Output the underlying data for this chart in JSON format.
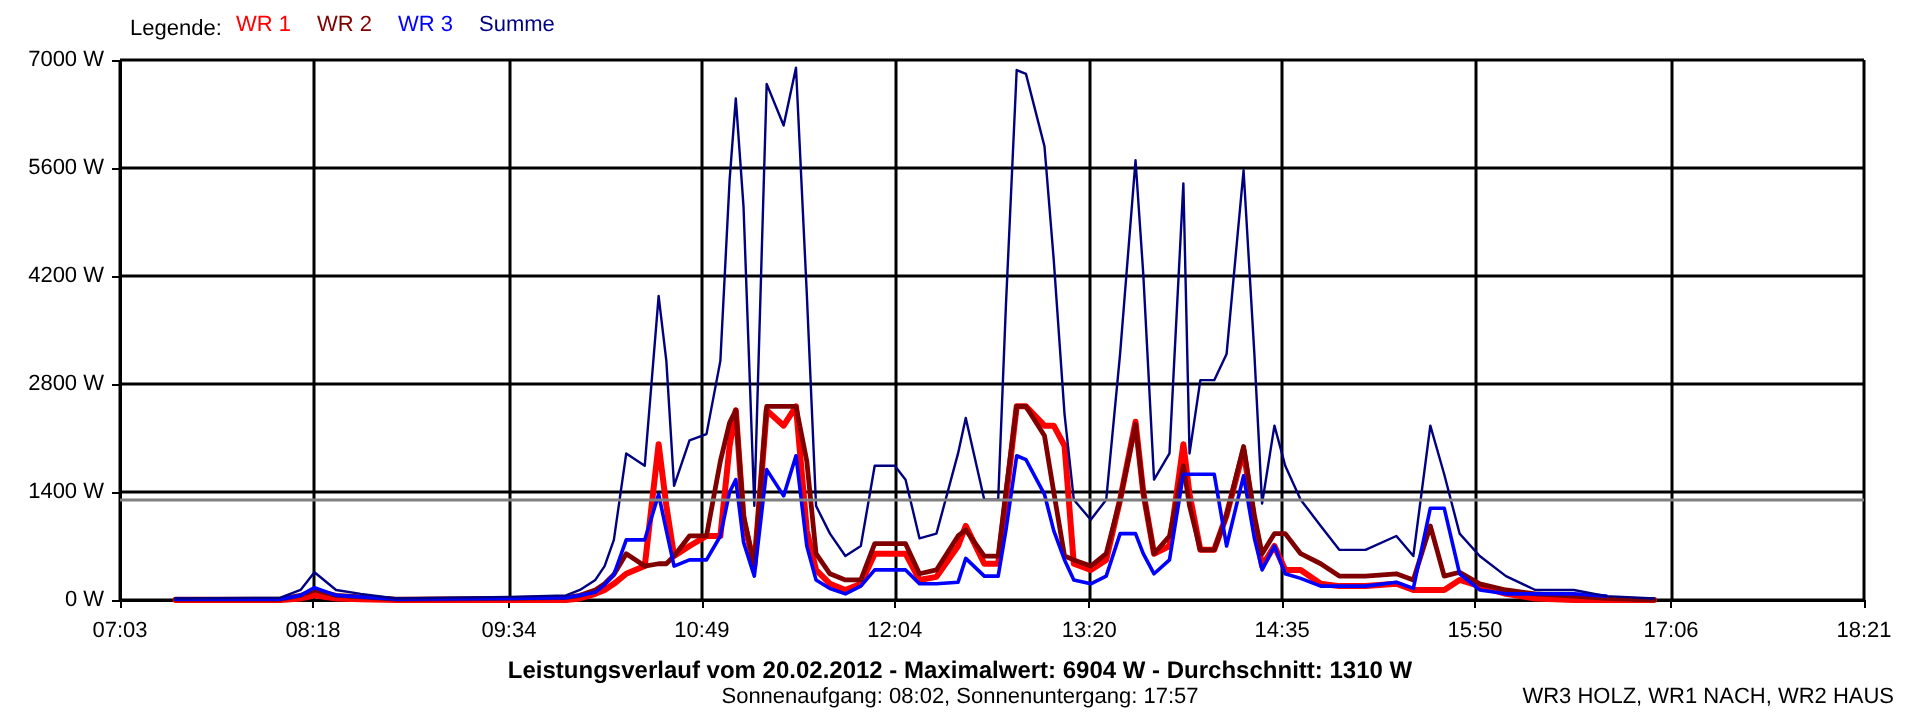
{
  "chart_data": {
    "type": "line",
    "title": "Leistungsverlauf vom 20.02.2012 - Maximalwert: 6904 W - Durchschnitt: 1310 W",
    "subtitle": "Sonnenaufgang: 08:02, Sonnenuntergang: 17:57",
    "legend_title": "Legende:",
    "annotations": [
      "WR3 HOLZ, WR1 NACH, WR2 HAUS"
    ],
    "x": [
      7.41,
      8.09,
      8.22,
      8.31,
      8.45,
      8.61,
      8.84,
      9.58,
      9.94,
      10.03,
      10.13,
      10.19,
      10.25,
      10.33,
      10.45,
      10.54,
      10.59,
      10.64,
      10.74,
      10.85,
      10.94,
      11.0,
      11.04,
      11.09,
      11.16,
      11.24,
      11.35,
      11.43,
      11.5,
      11.56,
      11.65,
      11.75,
      11.85,
      11.94,
      12.07,
      12.14,
      12.23,
      12.34,
      12.48,
      12.53,
      12.65,
      12.74,
      12.79,
      12.86,
      12.92,
      13.04,
      13.1,
      13.17,
      13.23,
      13.34,
      13.44,
      13.53,
      13.63,
      13.68,
      13.75,
      13.85,
      13.94,
      13.98,
      14.05,
      14.14,
      14.22,
      14.33,
      14.4,
      14.45,
      14.53,
      14.6,
      14.7,
      14.83,
      14.95,
      15.12,
      15.32,
      15.43,
      15.54,
      15.63,
      15.73,
      15.86,
      16.03,
      16.22,
      16.47,
      16.68,
      16.99
    ],
    "series": [
      {
        "name": "WR 1",
        "color": "#ff0000",
        "values": [
          0,
          0,
          20,
          60,
          20,
          10,
          0,
          0,
          0,
          20,
          80,
          130,
          210,
          340,
          440,
          2020,
          1220,
          570,
          700,
          830,
          830,
          2000,
          2460,
          1040,
          440,
          2460,
          2260,
          2510,
          900,
          390,
          210,
          130,
          210,
          600,
          600,
          600,
          260,
          300,
          700,
          960,
          470,
          470,
          1300,
          2510,
          2510,
          2260,
          2260,
          2000,
          470,
          390,
          520,
          1300,
          2310,
          1400,
          600,
          700,
          2020,
          1370,
          650,
          650,
          1100,
          1940,
          1000,
          440,
          700,
          390,
          390,
          210,
          180,
          180,
          210,
          130,
          130,
          130,
          260,
          180,
          80,
          20,
          0,
          0,
          0
        ]
      },
      {
        "name": "WR 2",
        "color": "#800000",
        "values": [
          10,
          10,
          60,
          130,
          60,
          40,
          10,
          20,
          30,
          60,
          130,
          210,
          330,
          600,
          440,
          470,
          470,
          570,
          830,
          830,
          1800,
          2300,
          2460,
          1100,
          440,
          2510,
          2510,
          2510,
          1800,
          600,
          340,
          260,
          260,
          730,
          730,
          730,
          340,
          390,
          830,
          910,
          570,
          570,
          1400,
          2510,
          2510,
          2130,
          1400,
          570,
          520,
          440,
          600,
          1300,
          2280,
          1400,
          600,
          830,
          1740,
          1220,
          650,
          650,
          1100,
          1990,
          1100,
          600,
          860,
          860,
          600,
          470,
          310,
          310,
          340,
          260,
          960,
          310,
          360,
          210,
          130,
          80,
          50,
          20,
          0
        ]
      },
      {
        "name": "WR 3",
        "color": "#0000ff",
        "values": [
          10,
          10,
          60,
          160,
          60,
          40,
          10,
          20,
          30,
          60,
          100,
          200,
          330,
          780,
          780,
          1370,
          900,
          440,
          520,
          520,
          830,
          1400,
          1560,
          750,
          310,
          1690,
          1350,
          1870,
          700,
          260,
          150,
          80,
          180,
          390,
          390,
          390,
          210,
          210,
          230,
          540,
          310,
          310,
          900,
          1870,
          1820,
          1370,
          900,
          520,
          260,
          210,
          310,
          860,
          860,
          600,
          340,
          520,
          1630,
          1630,
          1630,
          1630,
          700,
          1610,
          800,
          390,
          700,
          340,
          280,
          180,
          180,
          180,
          230,
          150,
          1190,
          1190,
          340,
          130,
          80,
          80,
          80,
          50,
          null
        ]
      },
      {
        "name": "Summe",
        "color": "#000080",
        "values": [
          20,
          30,
          130,
          360,
          130,
          80,
          20,
          40,
          60,
          130,
          260,
          440,
          780,
          1900,
          1740,
          3940,
          3100,
          1480,
          2070,
          2150,
          3100,
          5450,
          6500,
          5100,
          1220,
          6690,
          6150,
          6900,
          3970,
          1220,
          860,
          570,
          700,
          1740,
          1740,
          1560,
          800,
          860,
          1900,
          2360,
          1300,
          1300,
          3810,
          6870,
          6820,
          5880,
          4410,
          2410,
          1300,
          1040,
          1300,
          3190,
          5700,
          4230,
          1560,
          1900,
          5400,
          1900,
          2850,
          2850,
          3190,
          5570,
          3190,
          1250,
          2260,
          1740,
          1300,
          960,
          650,
          650,
          830,
          570,
          2260,
          1630,
          860,
          570,
          310,
          130,
          130,
          50,
          20
        ]
      }
    ],
    "xlim": [
      7.05,
      18.35
    ],
    "xticks": [
      {
        "value": 7.05,
        "label": "07:03"
      },
      {
        "value": 8.3,
        "label": "08:18"
      },
      {
        "value": 9.57,
        "label": "09:34"
      },
      {
        "value": 10.82,
        "label": "10:49"
      },
      {
        "value": 12.07,
        "label": "12:04"
      },
      {
        "value": 13.33,
        "label": "13:20"
      },
      {
        "value": 14.58,
        "label": "14:35"
      },
      {
        "value": 15.83,
        "label": "15:50"
      },
      {
        "value": 17.1,
        "label": "17:06"
      },
      {
        "value": 18.35,
        "label": "18:21"
      }
    ],
    "ylim": [
      0,
      7000
    ],
    "yticks": [
      {
        "value": 0,
        "label": "0 W"
      },
      {
        "value": 1400,
        "label": "1400 W"
      },
      {
        "value": 2800,
        "label": "2800 W"
      },
      {
        "value": 4200,
        "label": "4200 W"
      },
      {
        "value": 5600,
        "label": "5600 W"
      },
      {
        "value": 7000,
        "label": "7000 W"
      }
    ],
    "ref_lines": [
      {
        "axis": "y",
        "value": 1310,
        "color": "#808080"
      }
    ],
    "grid": true,
    "legend": "top left",
    "marker": "none",
    "line_style": "solid"
  }
}
